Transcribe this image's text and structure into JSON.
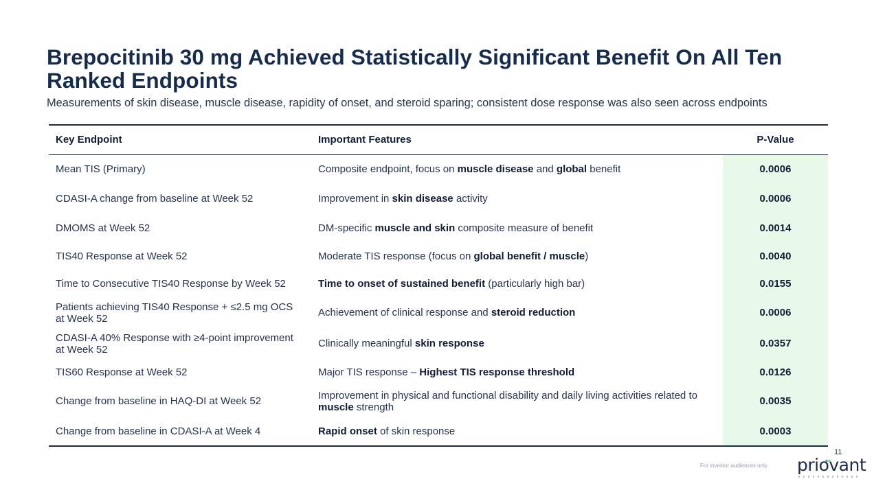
{
  "title": "Brepocitinib 30 mg Achieved Statistically Significant Benefit On All Ten Ranked Endpoints",
  "subtitle": "Measurements of skin disease, muscle disease, rapidity of onset, and steroid sparing; consistent dose response was also seen across endpoints",
  "table": {
    "headers": {
      "endpoint": "Key Endpoint",
      "features": "Important Features",
      "pvalue": "P-Value"
    },
    "highlight_color": "#e8f8e9",
    "rows": [
      {
        "endpoint": "Mean TIS (Primary)",
        "features": [
          {
            "t": "Composite endpoint, focus on "
          },
          {
            "t": "muscle disease",
            "b": true
          },
          {
            "t": " and "
          },
          {
            "t": "global",
            "b": true
          },
          {
            "t": " benefit"
          }
        ],
        "pvalue": "0.0006"
      },
      {
        "endpoint": "CDASI-A change from baseline at Week 52",
        "features": [
          {
            "t": "Improvement in "
          },
          {
            "t": "skin disease",
            "b": true
          },
          {
            "t": " activity"
          }
        ],
        "pvalue": "0.0006"
      },
      {
        "endpoint": "DMOMS at Week 52",
        "features": [
          {
            "t": "DM-specific "
          },
          {
            "t": "muscle and skin",
            "b": true
          },
          {
            "t": " composite measure of benefit"
          }
        ],
        "pvalue": "0.0014"
      },
      {
        "endpoint": "TIS40 Response at Week 52",
        "features": [
          {
            "t": "Moderate TIS response (focus on "
          },
          {
            "t": "global benefit / muscle",
            "b": true
          },
          {
            "t": ")"
          }
        ],
        "pvalue": "0.0040"
      },
      {
        "endpoint": "Time to Consecutive TIS40 Response by Week 52",
        "features": [
          {
            "t": "Time to onset of sustained benefit",
            "b": true
          },
          {
            "t": " (particularly high bar)"
          }
        ],
        "pvalue": "0.0155"
      },
      {
        "endpoint": "Patients achieving TIS40 Response + ≤2.5 mg OCS at Week 52",
        "features": [
          {
            "t": "Achievement of clinical response and "
          },
          {
            "t": "steroid reduction",
            "b": true
          }
        ],
        "pvalue": "0.0006"
      },
      {
        "endpoint": "CDASI-A 40% Response with ≥4-point improvement at Week 52",
        "features": [
          {
            "t": "Clinically meaningful "
          },
          {
            "t": "skin response",
            "b": true
          }
        ],
        "pvalue": "0.0357"
      },
      {
        "endpoint": "TIS60 Response at Week 52",
        "features": [
          {
            "t": "Major TIS response – "
          },
          {
            "t": "Highest TIS response threshold",
            "b": true
          }
        ],
        "pvalue": "0.0126"
      },
      {
        "endpoint": "Change from baseline in HAQ-DI at Week 52",
        "features": [
          {
            "t": "Improvement in physical and functional disability and daily living activities related to "
          },
          {
            "t": "muscle",
            "b": true
          },
          {
            "t": " strength"
          }
        ],
        "pvalue": "0.0035"
      },
      {
        "endpoint": "Change from baseline in CDASI-A at Week 4",
        "features": [
          {
            "t": "Rapid onset",
            "b": true
          },
          {
            "t": " of skin response"
          }
        ],
        "pvalue": "0.0003"
      }
    ]
  },
  "footer": {
    "page_number": "11",
    "note": "For investor audiences only",
    "logo_text": "priovant"
  }
}
